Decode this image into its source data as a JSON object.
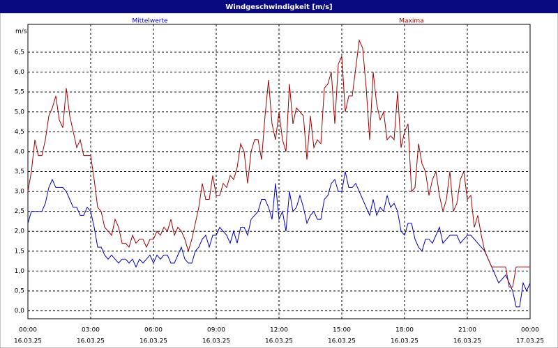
{
  "chart_data": {
    "type": "line",
    "title": "Windgeschwindigkeit [m/s]",
    "y_label": "m/s",
    "x": [
      0,
      10,
      20,
      30,
      40,
      50,
      60,
      70,
      80,
      90,
      100,
      110,
      120,
      130,
      140,
      150,
      160,
      170,
      180,
      190,
      200,
      210,
      220,
      230,
      240,
      250,
      260,
      270,
      280,
      290,
      300,
      310,
      320,
      330,
      340,
      350,
      360,
      370,
      380,
      390,
      400,
      410,
      420,
      430,
      440,
      450,
      460,
      470,
      480,
      490,
      500,
      510,
      520,
      530,
      540,
      550,
      560,
      570,
      580,
      590,
      600,
      610,
      620,
      630,
      640,
      650,
      660,
      670,
      680,
      690,
      700,
      710,
      720,
      730,
      740,
      750,
      760,
      770,
      780,
      790,
      800,
      810,
      820,
      830,
      840,
      850,
      860,
      870,
      880,
      890,
      900,
      910,
      920,
      930,
      940,
      950,
      960,
      970,
      980,
      990,
      1000,
      1010,
      1020,
      1030,
      1040,
      1050,
      1060,
      1070,
      1080,
      1090,
      1100,
      1110,
      1120,
      1130,
      1140,
      1150,
      1160,
      1170,
      1180,
      1190,
      1200,
      1210,
      1220,
      1230,
      1240,
      1250,
      1260,
      1270,
      1280,
      1290,
      1300,
      1310,
      1320,
      1330,
      1340,
      1350,
      1360,
      1370,
      1380,
      1390,
      1400,
      1410,
      1420,
      1430,
      1440
    ],
    "series": [
      {
        "name": "Mittelwerte",
        "color": "#0000c0",
        "values": [
          2.2,
          2.5,
          2.5,
          2.5,
          2.5,
          2.7,
          3.1,
          3.3,
          3.1,
          3.1,
          3.1,
          3.0,
          2.8,
          2.6,
          2.6,
          2.4,
          2.4,
          2.6,
          2.5,
          2.1,
          1.6,
          1.6,
          1.4,
          1.3,
          1.4,
          1.3,
          1.2,
          1.3,
          1.3,
          1.2,
          1.3,
          1.1,
          1.3,
          1.2,
          1.3,
          1.4,
          1.2,
          1.4,
          1.3,
          1.4,
          1.4,
          1.2,
          1.2,
          1.4,
          1.6,
          1.3,
          1.2,
          1.2,
          1.5,
          1.6,
          1.8,
          1.9,
          1.6,
          1.9,
          1.9,
          2.1,
          2.0,
          1.9,
          1.7,
          2.0,
          1.7,
          2.1,
          2.1,
          1.9,
          2.3,
          2.4,
          2.5,
          2.8,
          2.8,
          2.6,
          2.3,
          3.2,
          2.3,
          2.5,
          2.0,
          3.0,
          2.5,
          2.6,
          2.9,
          2.6,
          2.2,
          2.4,
          2.5,
          2.3,
          2.3,
          2.8,
          2.9,
          3.2,
          3.3,
          3.0,
          3.0,
          3.5,
          3.1,
          3.1,
          3.2,
          3.0,
          2.8,
          2.6,
          2.4,
          2.8,
          2.4,
          2.6,
          2.5,
          2.9,
          2.6,
          2.7,
          2.5,
          2.0,
          1.9,
          2.2,
          2.2,
          1.8,
          1.6,
          1.5,
          1.8,
          1.8,
          1.7,
          1.9,
          2.1,
          1.7,
          1.8,
          1.9,
          1.9,
          1.9,
          1.7,
          1.8,
          1.9,
          1.9,
          1.8,
          1.7,
          1.6,
          1.5,
          1.3,
          1.1,
          0.9,
          0.7,
          0.8,
          0.9,
          0.7,
          0.5,
          0.1,
          0.1,
          0.7,
          0.5,
          0.7
        ]
      },
      {
        "name": "Maxima",
        "color": "#a00000",
        "values": [
          3.0,
          3.5,
          4.3,
          3.9,
          3.9,
          4.3,
          4.9,
          5.1,
          5.4,
          4.8,
          4.6,
          5.6,
          4.9,
          4.5,
          4.1,
          4.3,
          3.9,
          3.9,
          3.9,
          3.3,
          2.6,
          2.5,
          2.1,
          2.0,
          1.9,
          2.3,
          2.1,
          1.7,
          1.7,
          1.6,
          1.9,
          1.7,
          1.8,
          1.8,
          1.6,
          1.8,
          1.8,
          2.0,
          1.9,
          2.1,
          2.0,
          2.3,
          1.9,
          2.1,
          2.0,
          1.8,
          1.5,
          1.8,
          2.2,
          2.6,
          3.2,
          2.8,
          2.8,
          3.4,
          2.9,
          2.9,
          3.2,
          3.1,
          3.4,
          3.3,
          3.6,
          4.2,
          4.0,
          3.2,
          4.0,
          4.3,
          4.3,
          3.8,
          4.9,
          5.8,
          4.7,
          4.3,
          5.0,
          4.3,
          4.0,
          5.7,
          4.7,
          5.1,
          5.0,
          4.9,
          3.8,
          4.9,
          4.1,
          4.3,
          4.2,
          5.6,
          5.7,
          6.0,
          4.7,
          6.2,
          6.4,
          5.0,
          5.4,
          5.4,
          6.1,
          6.8,
          6.6,
          5.6,
          4.3,
          6.0,
          5.2,
          4.8,
          5.0,
          4.3,
          4.4,
          4.3,
          5.5,
          4.1,
          4.5,
          4.7,
          3.0,
          3.1,
          4.2,
          3.7,
          3.5,
          2.9,
          3.3,
          3.5,
          2.9,
          2.5,
          2.8,
          3.5,
          2.5,
          2.7,
          3.3,
          3.5,
          2.8,
          2.9,
          2.1,
          2.4,
          1.9,
          1.5,
          1.3,
          1.1,
          1.1,
          1.1,
          1.1,
          1.1,
          0.6,
          0.6,
          1.1,
          1.1,
          1.1,
          1.1,
          1.1
        ]
      }
    ],
    "xlim": [
      0,
      1440
    ],
    "xticks": [
      {
        "value": 0,
        "label": "00:00",
        "date": "16.03.25"
      },
      {
        "value": 180,
        "label": "03:00",
        "date": "16.03.25"
      },
      {
        "value": 360,
        "label": "06:00",
        "date": "16.03.25"
      },
      {
        "value": 540,
        "label": "09:00",
        "date": "16.03.25"
      },
      {
        "value": 720,
        "label": "12:00",
        "date": "16.03.25"
      },
      {
        "value": 900,
        "label": "15:00",
        "date": "16.03.25"
      },
      {
        "value": 1080,
        "label": "18:00",
        "date": "16.03.25"
      },
      {
        "value": 1260,
        "label": "21:00",
        "date": "16.03.25"
      },
      {
        "value": 1440,
        "label": "00:00",
        "date": "17.03.25"
      }
    ],
    "ylim": [
      -0.2,
      7.2
    ],
    "yticks": [
      {
        "value": 0,
        "label": "0,0"
      },
      {
        "value": 0.5,
        "label": "0,5"
      },
      {
        "value": 1,
        "label": "1,0"
      },
      {
        "value": 1.5,
        "label": "1,5"
      },
      {
        "value": 2,
        "label": "2,0"
      },
      {
        "value": 2.5,
        "label": "2,5"
      },
      {
        "value": 3,
        "label": "3,0"
      },
      {
        "value": 3.5,
        "label": "3,5"
      },
      {
        "value": 4,
        "label": "4,0"
      },
      {
        "value": 4.5,
        "label": "4,5"
      },
      {
        "value": 5,
        "label": "5,0"
      },
      {
        "value": 5.5,
        "label": "5,5"
      },
      {
        "value": 6,
        "label": "6,0"
      },
      {
        "value": 6.5,
        "label": "6,5"
      }
    ],
    "grid": true
  }
}
